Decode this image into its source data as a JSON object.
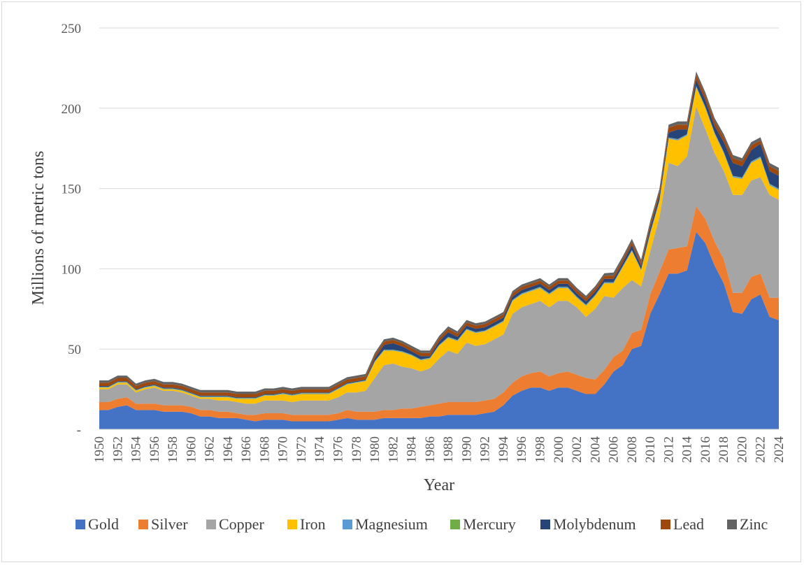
{
  "chart_data": {
    "type": "area",
    "stacked": true,
    "title": "",
    "xlabel": "Year",
    "ylabel": "Millions of metric tons",
    "ylim": [
      0,
      250
    ],
    "yticks": [
      0,
      50,
      100,
      150,
      200,
      250
    ],
    "ytick_labels": [
      "-",
      "50",
      "100",
      "150",
      "200",
      "250"
    ],
    "grid": "horizontal",
    "legend_position": "bottom",
    "x": [
      1950,
      1951,
      1952,
      1953,
      1954,
      1955,
      1956,
      1957,
      1958,
      1959,
      1960,
      1961,
      1962,
      1963,
      1964,
      1965,
      1966,
      1967,
      1968,
      1969,
      1970,
      1971,
      1972,
      1973,
      1974,
      1975,
      1976,
      1977,
      1978,
      1979,
      1980,
      1981,
      1982,
      1983,
      1984,
      1985,
      1986,
      1987,
      1988,
      1989,
      1990,
      1991,
      1992,
      1993,
      1994,
      1995,
      1996,
      1997,
      1998,
      1999,
      2000,
      2001,
      2002,
      2003,
      2004,
      2005,
      2006,
      2007,
      2008,
      2009,
      2010,
      2011,
      2012,
      2013,
      2014,
      2015,
      2016,
      2017,
      2018,
      2019,
      2020,
      2021,
      2022,
      2023,
      2024
    ],
    "x_tick_labels": [
      "1950",
      "1952",
      "1954",
      "1956",
      "1958",
      "1960",
      "1962",
      "1964",
      "1966",
      "1968",
      "1970",
      "1972",
      "1974",
      "1976",
      "1978",
      "1980",
      "1982",
      "1984",
      "1986",
      "1988",
      "1990",
      "1992",
      "1994",
      "1996",
      "1998",
      "2000",
      "2002",
      "2004",
      "2006",
      "2008",
      "2010",
      "2012",
      "2014",
      "2016",
      "2018",
      "2020",
      "2022",
      "2024"
    ],
    "series": [
      {
        "name": "Gold",
        "color": "#4472C4",
        "values": [
          12,
          12,
          14,
          15,
          12,
          12,
          12,
          11,
          11,
          11,
          10,
          8,
          8,
          7,
          7,
          7,
          6,
          5,
          6,
          6,
          6,
          5,
          5,
          5,
          5,
          5,
          6,
          7,
          6,
          6,
          6,
          7,
          7,
          7,
          7,
          7,
          8,
          8,
          9,
          9,
          9,
          9,
          10,
          11,
          15,
          21,
          24,
          26,
          26,
          24,
          26,
          26,
          24,
          22,
          22,
          28,
          36,
          40,
          50,
          52,
          72,
          84,
          97,
          97,
          99,
          123,
          116,
          102,
          91,
          73,
          72,
          81,
          84,
          70,
          68
        ]
      },
      {
        "name": "Silver",
        "color": "#ED7D31",
        "values": [
          5,
          5,
          5,
          5,
          4,
          4,
          4,
          4,
          4,
          4,
          4,
          4,
          4,
          4,
          4,
          3,
          3,
          4,
          4,
          4,
          4,
          4,
          4,
          4,
          4,
          4,
          4,
          5,
          5,
          5,
          5,
          5,
          5,
          6,
          6,
          7,
          7,
          8,
          8,
          8,
          8,
          8,
          8,
          8,
          8,
          8,
          9,
          9,
          10,
          9,
          9,
          10,
          10,
          10,
          9,
          9,
          9,
          9,
          10,
          10,
          12,
          14,
          15,
          16,
          15,
          16,
          15,
          15,
          15,
          12,
          13,
          14,
          13,
          12,
          14
        ]
      },
      {
        "name": "Copper",
        "color": "#A5A5A5",
        "values": [
          8,
          8,
          9,
          8,
          7,
          9,
          10,
          9,
          9,
          8,
          7,
          7,
          7,
          7,
          7,
          7,
          7,
          7,
          8,
          8,
          8,
          8,
          9,
          9,
          9,
          9,
          10,
          11,
          12,
          13,
          21,
          28,
          29,
          26,
          25,
          22,
          23,
          28,
          32,
          30,
          37,
          35,
          35,
          37,
          36,
          43,
          43,
          43,
          44,
          43,
          45,
          44,
          42,
          38,
          44,
          46,
          37,
          39,
          33,
          27,
          27,
          34,
          54,
          51,
          56,
          62,
          56,
          55,
          55,
          61,
          61,
          60,
          60,
          64,
          61
        ]
      },
      {
        "name": "Iron",
        "color": "#FFC000",
        "values": [
          1,
          1,
          1,
          1,
          1,
          1,
          1,
          1,
          1,
          1,
          1,
          1,
          1,
          2,
          2,
          2,
          3,
          3,
          3,
          3,
          4,
          4,
          4,
          4,
          4,
          4,
          5,
          5,
          6,
          6,
          10,
          9,
          8,
          9,
          8,
          7,
          6,
          8,
          8,
          8,
          8,
          8,
          8,
          8,
          8,
          8,
          8,
          8,
          8,
          8,
          8,
          8,
          6,
          7,
          8,
          8,
          9,
          13,
          18,
          10,
          11,
          10,
          15,
          16,
          13,
          12,
          13,
          12,
          11,
          11,
          10,
          11,
          12,
          6,
          6
        ]
      },
      {
        "name": "Magnesium",
        "color": "#5B9BD5",
        "values": [
          0.3,
          0.3,
          0.3,
          0.3,
          0.3,
          0.3,
          0.3,
          0.3,
          0.3,
          0.3,
          0.3,
          0.3,
          0.3,
          0.3,
          0.3,
          0.3,
          0.3,
          0.3,
          0.3,
          0.3,
          0.3,
          0.3,
          0.3,
          0.3,
          0.3,
          0.3,
          0.3,
          0.3,
          0.3,
          0.3,
          0.4,
          0.4,
          0.4,
          0.4,
          0.4,
          0.4,
          0.4,
          0.4,
          0.4,
          0.4,
          0.4,
          0.4,
          0.4,
          0.4,
          0.4,
          0.5,
          0.5,
          0.5,
          0.5,
          0.5,
          0.5,
          0.5,
          0.5,
          0.5,
          0.5,
          0.5,
          0.5,
          0.5,
          0.5,
          0.5,
          0.6,
          0.6,
          0.6,
          0.6,
          0.6,
          0.7,
          0.7,
          0.7,
          0.7,
          0.7,
          0.7,
          0.7,
          0.7,
          0.7,
          0.7
        ]
      },
      {
        "name": "Mercury",
        "color": "#70AD47",
        "values": [
          0.2,
          0.2,
          0.2,
          0.2,
          0.2,
          0.2,
          0.2,
          0.2,
          0.2,
          0.2,
          0.2,
          0.2,
          0.2,
          0.2,
          0.2,
          0.2,
          0.2,
          0.2,
          0.2,
          0.2,
          0.2,
          0.2,
          0.2,
          0.2,
          0.2,
          0.2,
          0.2,
          0.2,
          0.2,
          0.2,
          0.2,
          0.2,
          0.2,
          0.2,
          0.2,
          0.2,
          0.2,
          0.2,
          0.2,
          0.2,
          0.2,
          0.2,
          0.2,
          0.2,
          0.2,
          0.2,
          0.2,
          0.2,
          0.2,
          0.2,
          0.2,
          0.2,
          0.2,
          0.2,
          0.2,
          0.2,
          0.2,
          0.2,
          0.2,
          0.2,
          0.2,
          0.2,
          0.2,
          0.2,
          0.2,
          0.2,
          0.2,
          0.2,
          0.2,
          0.2,
          0.2,
          0.2,
          0.2,
          0.2,
          0.2
        ]
      },
      {
        "name": "Molybdenum",
        "color": "#264478",
        "values": [
          0.5,
          0.5,
          0.5,
          0.5,
          0.5,
          0.5,
          0.5,
          0.5,
          0.5,
          0.5,
          0.5,
          0.5,
          0.5,
          0.5,
          0.5,
          0.5,
          0.5,
          0.5,
          0.5,
          0.5,
          0.5,
          0.5,
          0.5,
          0.5,
          0.5,
          0.5,
          0.5,
          0.5,
          0.5,
          0.5,
          1.5,
          3,
          4,
          3,
          2,
          2,
          1,
          2,
          3,
          2,
          2,
          2,
          2,
          2,
          2,
          2,
          2,
          2,
          2,
          2,
          2,
          2,
          2,
          2,
          2,
          2,
          2,
          2,
          3,
          2,
          3,
          3,
          3,
          6,
          3,
          4,
          4,
          4,
          6,
          8,
          7,
          7,
          8,
          8,
          8
        ]
      },
      {
        "name": "Lead",
        "color": "#9E480E",
        "values": [
          2,
          2,
          2,
          2,
          2,
          2,
          2,
          2,
          2,
          2,
          2,
          2,
          2,
          2,
          2,
          2,
          2,
          2,
          2,
          2,
          2,
          2,
          2,
          2,
          2,
          2,
          2,
          2,
          2,
          2,
          2,
          2,
          2,
          2,
          2,
          2,
          2,
          2,
          2,
          2,
          2,
          2,
          2,
          2,
          2,
          2,
          2,
          2,
          2,
          2,
          2,
          2,
          2,
          2,
          2,
          2,
          2,
          2,
          2,
          2,
          2,
          2,
          3,
          3,
          3,
          3,
          3,
          3,
          3,
          3,
          3,
          3,
          2,
          3,
          3
        ]
      },
      {
        "name": "Zinc",
        "color": "#636363",
        "values": [
          1.5,
          1.5,
          1.5,
          1.5,
          1.5,
          1.5,
          1.5,
          1.5,
          1.5,
          1.5,
          1.5,
          1.5,
          1.5,
          1.5,
          1.5,
          1.5,
          1.5,
          1.5,
          1.5,
          1.5,
          1.5,
          1.5,
          1.5,
          1.5,
          1.5,
          1.5,
          1.5,
          1.5,
          1.5,
          1.5,
          1.5,
          1.5,
          1.5,
          1.5,
          1.5,
          1.5,
          1.5,
          1.5,
          1.5,
          1.5,
          1.5,
          1.5,
          1.5,
          1.5,
          1.5,
          1.5,
          1.5,
          1.5,
          1.5,
          1.5,
          1.5,
          1.5,
          1.5,
          1.5,
          1.5,
          1.5,
          2,
          2,
          2,
          2,
          2,
          2,
          2,
          2,
          2,
          2,
          2,
          2,
          2,
          2,
          2,
          2,
          2,
          2,
          2
        ]
      }
    ]
  }
}
